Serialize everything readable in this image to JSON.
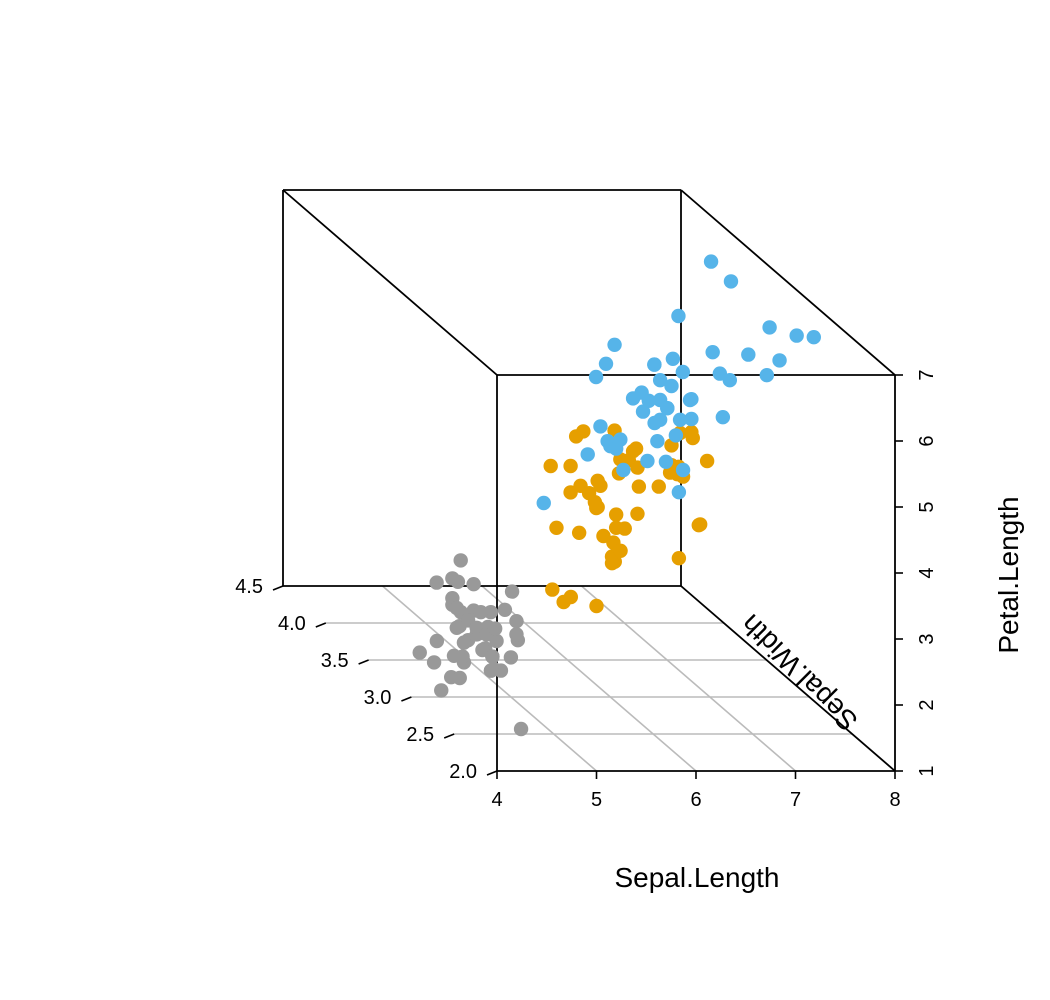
{
  "chart_data": {
    "type": "scatter",
    "projection": "3d",
    "xlabel": "Sepal.Length",
    "ylabel": "Sepal.Width",
    "zlabel": "Petal.Length",
    "xlim": [
      4,
      8
    ],
    "ylim": [
      2.0,
      4.5
    ],
    "zlim": [
      1,
      7
    ],
    "x_ticks": [
      "4",
      "5",
      "6",
      "7",
      "8"
    ],
    "y_ticks": [
      "2.0",
      "2.5",
      "3.0",
      "3.5",
      "4.0",
      "4.5"
    ],
    "z_ticks": [
      "1",
      "2",
      "3",
      "4",
      "5",
      "6",
      "7"
    ],
    "grid": "on (bottom plane)",
    "colors": {
      "box": "#000000",
      "grid": "#bbbbbb"
    },
    "series": [
      {
        "color": "#999999",
        "points": [
          [
            5.1,
            3.5,
            1.4
          ],
          [
            4.9,
            3.0,
            1.4
          ],
          [
            4.7,
            3.2,
            1.3
          ],
          [
            4.6,
            3.1,
            1.5
          ],
          [
            5.0,
            3.6,
            1.4
          ],
          [
            5.4,
            3.9,
            1.7
          ],
          [
            4.6,
            3.4,
            1.4
          ],
          [
            5.0,
            3.4,
            1.5
          ],
          [
            4.4,
            2.9,
            1.4
          ],
          [
            4.9,
            3.1,
            1.5
          ],
          [
            5.4,
            3.7,
            1.5
          ],
          [
            4.8,
            3.4,
            1.6
          ],
          [
            4.8,
            3.0,
            1.4
          ],
          [
            4.3,
            3.0,
            1.1
          ],
          [
            5.8,
            4.0,
            1.2
          ],
          [
            5.7,
            4.4,
            1.5
          ],
          [
            5.4,
            3.9,
            1.3
          ],
          [
            5.1,
            3.5,
            1.4
          ],
          [
            5.7,
            3.8,
            1.7
          ],
          [
            5.1,
            3.8,
            1.5
          ],
          [
            5.4,
            3.4,
            1.7
          ],
          [
            5.1,
            3.7,
            1.5
          ],
          [
            4.6,
            3.6,
            1.0
          ],
          [
            5.1,
            3.3,
            1.7
          ],
          [
            4.8,
            3.4,
            1.9
          ],
          [
            5.0,
            3.0,
            1.6
          ],
          [
            5.0,
            3.4,
            1.6
          ],
          [
            5.2,
            3.5,
            1.5
          ],
          [
            5.2,
            3.4,
            1.4
          ],
          [
            4.7,
            3.2,
            1.6
          ],
          [
            4.8,
            3.1,
            1.6
          ],
          [
            5.4,
            3.4,
            1.5
          ],
          [
            5.2,
            4.1,
            1.5
          ],
          [
            5.5,
            4.2,
            1.4
          ],
          [
            4.9,
            3.1,
            1.5
          ],
          [
            5.0,
            3.2,
            1.2
          ],
          [
            5.5,
            3.5,
            1.3
          ],
          [
            4.4,
            3.0,
            1.3
          ],
          [
            5.1,
            3.4,
            1.5
          ],
          [
            5.0,
            3.5,
            1.3
          ],
          [
            4.5,
            2.3,
            1.3
          ],
          [
            4.4,
            3.2,
            1.3
          ],
          [
            5.0,
            3.5,
            1.6
          ],
          [
            5.1,
            3.8,
            1.9
          ],
          [
            4.8,
            3.0,
            1.4
          ],
          [
            5.1,
            3.8,
            1.6
          ],
          [
            4.6,
            3.2,
            1.4
          ],
          [
            5.3,
            3.7,
            1.5
          ],
          [
            5.0,
            3.3,
            1.4
          ]
        ]
      },
      {
        "color": "#E69F00",
        "points": [
          [
            7.0,
            3.2,
            4.7
          ],
          [
            6.4,
            3.2,
            4.5
          ],
          [
            6.9,
            3.1,
            4.9
          ],
          [
            5.5,
            2.3,
            4.0
          ],
          [
            6.5,
            2.8,
            4.6
          ],
          [
            5.7,
            2.8,
            4.5
          ],
          [
            6.3,
            3.3,
            4.7
          ],
          [
            4.9,
            2.4,
            3.3
          ],
          [
            6.6,
            2.9,
            4.6
          ],
          [
            5.2,
            2.7,
            3.9
          ],
          [
            5.0,
            2.0,
            3.5
          ],
          [
            5.9,
            3.0,
            4.2
          ],
          [
            6.0,
            2.2,
            4.0
          ],
          [
            6.1,
            2.9,
            4.7
          ],
          [
            5.6,
            2.9,
            3.6
          ],
          [
            6.7,
            3.1,
            4.4
          ],
          [
            5.6,
            3.0,
            4.5
          ],
          [
            5.8,
            2.7,
            4.1
          ],
          [
            6.2,
            2.2,
            4.5
          ],
          [
            5.6,
            2.5,
            3.9
          ],
          [
            5.9,
            3.2,
            4.8
          ],
          [
            6.1,
            2.8,
            4.0
          ],
          [
            6.3,
            2.5,
            4.9
          ],
          [
            6.1,
            2.8,
            4.7
          ],
          [
            6.4,
            2.9,
            4.3
          ],
          [
            6.6,
            3.0,
            4.4
          ],
          [
            6.8,
            2.8,
            4.8
          ],
          [
            6.7,
            3.0,
            5.0
          ],
          [
            6.0,
            2.9,
            4.5
          ],
          [
            5.7,
            2.6,
            3.5
          ],
          [
            5.5,
            2.4,
            3.8
          ],
          [
            5.5,
            2.4,
            3.7
          ],
          [
            5.8,
            2.7,
            3.9
          ],
          [
            6.0,
            2.7,
            5.1
          ],
          [
            5.4,
            3.0,
            4.5
          ],
          [
            6.0,
            3.4,
            4.5
          ],
          [
            6.7,
            3.1,
            4.7
          ],
          [
            6.3,
            2.3,
            4.4
          ],
          [
            5.6,
            3.0,
            4.1
          ],
          [
            5.5,
            2.5,
            4.0
          ],
          [
            5.5,
            2.6,
            4.4
          ],
          [
            6.1,
            3.0,
            4.6
          ],
          [
            5.8,
            2.6,
            4.0
          ],
          [
            5.0,
            2.3,
            3.3
          ],
          [
            5.6,
            2.7,
            4.2
          ],
          [
            5.7,
            3.0,
            4.2
          ],
          [
            5.7,
            2.9,
            4.2
          ],
          [
            6.2,
            2.9,
            4.3
          ],
          [
            5.1,
            2.5,
            3.0
          ],
          [
            5.7,
            2.8,
            4.1
          ]
        ]
      },
      {
        "color": "#56B4E9",
        "points": [
          [
            6.3,
            3.3,
            6.0
          ],
          [
            5.8,
            2.7,
            5.1
          ],
          [
            7.1,
            3.0,
            5.9
          ],
          [
            6.3,
            2.9,
            5.6
          ],
          [
            6.5,
            3.0,
            5.8
          ],
          [
            7.6,
            3.0,
            6.6
          ],
          [
            4.9,
            2.5,
            4.5
          ],
          [
            7.3,
            2.9,
            6.3
          ],
          [
            6.7,
            2.5,
            5.8
          ],
          [
            7.2,
            3.6,
            6.1
          ],
          [
            6.5,
            3.2,
            5.1
          ],
          [
            6.4,
            2.7,
            5.3
          ],
          [
            6.8,
            3.0,
            5.5
          ],
          [
            5.7,
            2.5,
            5.0
          ],
          [
            5.8,
            2.8,
            5.1
          ],
          [
            6.4,
            3.2,
            5.3
          ],
          [
            6.5,
            3.0,
            5.5
          ],
          [
            7.7,
            3.8,
            6.7
          ],
          [
            7.7,
            2.6,
            6.9
          ],
          [
            6.0,
            2.2,
            5.0
          ],
          [
            6.9,
            3.2,
            5.7
          ],
          [
            5.6,
            2.8,
            4.9
          ],
          [
            7.7,
            2.8,
            6.7
          ],
          [
            6.3,
            2.7,
            4.9
          ],
          [
            6.7,
            3.3,
            5.7
          ],
          [
            7.2,
            3.2,
            6.0
          ],
          [
            6.2,
            2.8,
            4.8
          ],
          [
            6.1,
            3.0,
            4.9
          ],
          [
            6.4,
            2.8,
            5.6
          ],
          [
            7.2,
            3.0,
            5.8
          ],
          [
            7.4,
            2.8,
            6.1
          ],
          [
            7.9,
            3.8,
            6.4
          ],
          [
            6.4,
            2.8,
            5.6
          ],
          [
            6.3,
            2.8,
            5.1
          ],
          [
            6.1,
            2.6,
            5.6
          ],
          [
            7.7,
            3.0,
            6.1
          ],
          [
            6.3,
            3.4,
            5.6
          ],
          [
            6.4,
            3.1,
            5.5
          ],
          [
            6.0,
            3.0,
            4.8
          ],
          [
            6.9,
            3.1,
            5.4
          ],
          [
            6.7,
            3.1,
            5.6
          ],
          [
            6.9,
            3.1,
            5.1
          ],
          [
            6.8,
            3.2,
            5.9
          ],
          [
            6.7,
            3.3,
            5.7
          ],
          [
            6.7,
            3.0,
            5.2
          ],
          [
            6.3,
            2.5,
            5.0
          ],
          [
            6.5,
            3.0,
            5.2
          ],
          [
            6.2,
            3.4,
            5.4
          ],
          [
            5.9,
            3.0,
            5.1
          ]
        ]
      }
    ]
  }
}
